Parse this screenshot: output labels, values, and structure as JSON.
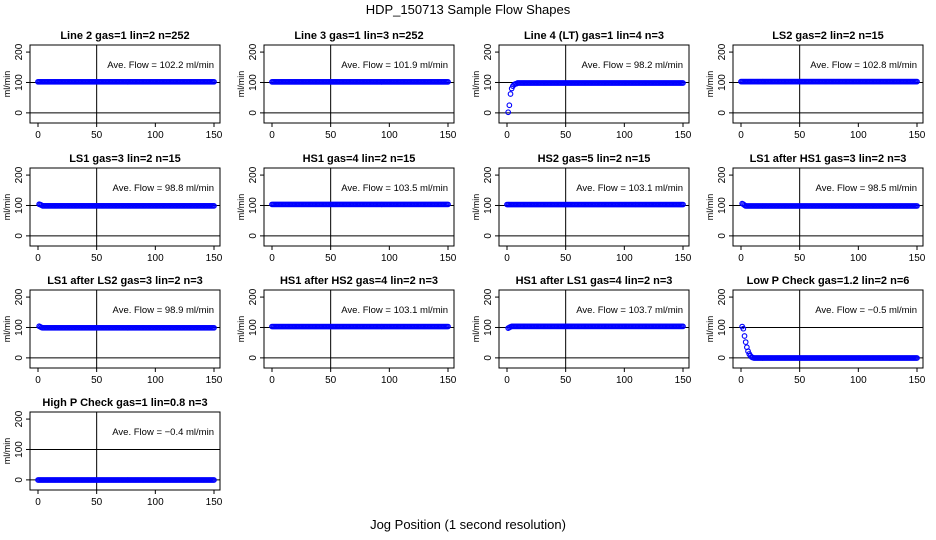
{
  "figure": {
    "title": "HDP_150713  Sample Flow Shapes",
    "xlabel": "Jog Position (1 second resolution)",
    "ylabel": "ml/min",
    "flow_prefix": "Ave. Flow = ",
    "flow_unit": "ml/min",
    "x_ticks": [
      0,
      50,
      100,
      150
    ],
    "y_ticks": [
      0,
      100,
      200
    ],
    "xlim": [
      0,
      150
    ],
    "ylim": [
      -30,
      220
    ],
    "reference_lines": {
      "vertical_x": 50,
      "horizontal_y": [
        0,
        100
      ]
    },
    "point_color": "#0000ff"
  },
  "chart_data": [
    {
      "type": "scatter",
      "title": "Line 2 gas=1 lin=2 n=252",
      "ave_flow": "102.2",
      "shape": "flat",
      "level": 102.2
    },
    {
      "type": "scatter",
      "title": "Line 3 gas=1 lin=3 n=252",
      "ave_flow": "101.9",
      "shape": "flat",
      "level": 101.9
    },
    {
      "type": "scatter",
      "title": "Line 4 (LT) gas=1 lin=4 n=3",
      "ave_flow": "98.2",
      "shape": "ramp_up",
      "level": 98.2,
      "initial_points": [
        [
          1,
          2
        ],
        [
          2,
          25
        ],
        [
          3,
          62
        ],
        [
          4,
          80
        ],
        [
          5,
          88
        ],
        [
          6,
          93
        ],
        [
          7,
          95
        ],
        [
          8,
          96
        ]
      ]
    },
    {
      "type": "scatter",
      "title": "LS2 gas=2 lin=2 n=15",
      "ave_flow": "102.8",
      "shape": "flat",
      "level": 102.8
    },
    {
      "type": "scatter",
      "title": "LS1 gas=3 lin=2 n=15",
      "ave_flow": "98.8",
      "shape": "flat",
      "level": 98.8,
      "initial_points": [
        [
          1,
          104
        ],
        [
          2,
          103
        ],
        [
          3,
          101
        ]
      ]
    },
    {
      "type": "scatter",
      "title": "HS1 gas=4 lin=2 n=15",
      "ave_flow": "103.5",
      "shape": "flat",
      "level": 103.5
    },
    {
      "type": "scatter",
      "title": "HS2 gas=5 lin=2 n=15",
      "ave_flow": "103.1",
      "shape": "flat",
      "level": 103.1
    },
    {
      "type": "scatter",
      "title": "LS1 after HS1 gas=3 lin=2 n=3",
      "ave_flow": "98.5",
      "shape": "flat",
      "level": 98.5,
      "initial_points": [
        [
          1,
          106
        ],
        [
          2,
          104
        ],
        [
          3,
          101
        ]
      ]
    },
    {
      "type": "scatter",
      "title": "LS1 after LS2 gas=3 lin=2 n=3",
      "ave_flow": "98.9",
      "shape": "flat",
      "level": 98.9,
      "initial_points": [
        [
          1,
          104
        ],
        [
          2,
          102
        ],
        [
          3,
          100
        ]
      ]
    },
    {
      "type": "scatter",
      "title": "HS1 after HS2 gas=4 lin=2 n=3",
      "ave_flow": "103.1",
      "shape": "flat",
      "level": 103.1
    },
    {
      "type": "scatter",
      "title": "HS1 after LS1 gas=4 lin=2 n=3",
      "ave_flow": "103.7",
      "shape": "flat",
      "level": 103.7,
      "initial_points": [
        [
          1,
          98
        ],
        [
          2,
          100
        ],
        [
          3,
          102
        ]
      ]
    },
    {
      "type": "scatter",
      "title": "Low P Check gas=1.2 lin=2 n=6",
      "ave_flow": "−0.5",
      "shape": "decay",
      "level": -0.5,
      "initial_points": [
        [
          1,
          103
        ],
        [
          2,
          96
        ],
        [
          3,
          72
        ],
        [
          4,
          52
        ],
        [
          5,
          35
        ],
        [
          6,
          22
        ],
        [
          7,
          13
        ],
        [
          8,
          7
        ],
        [
          9,
          3
        ],
        [
          10,
          1
        ]
      ]
    },
    {
      "type": "scatter",
      "title": "High P Check gas=1 lin=0.8 n=3",
      "ave_flow": "−0.4",
      "shape": "flat",
      "level": -0.4
    }
  ]
}
